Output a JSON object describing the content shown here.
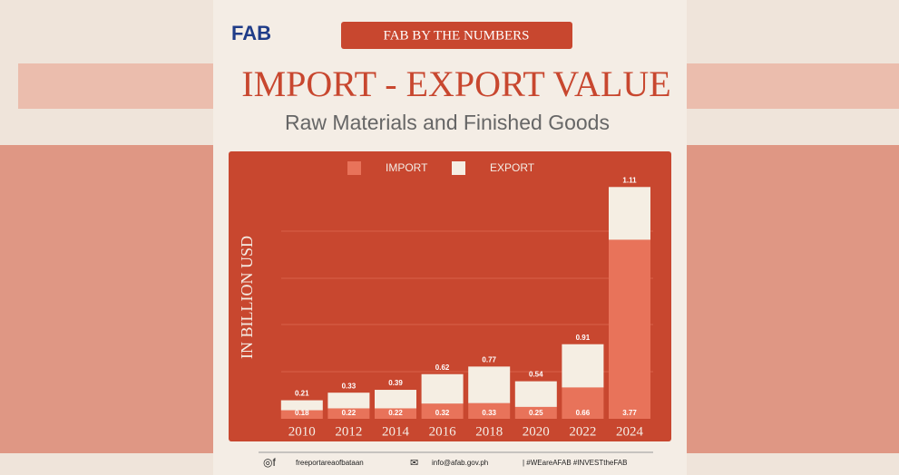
{
  "header": {
    "logo": "FAB",
    "banner": "FAB BY THE NUMBERS"
  },
  "chart_data": {
    "type": "stacked_bar",
    "title": "IMPORT - EXPORT VALUE",
    "subtitle": "Raw Materials and Finished Goods",
    "y_label": "IN BILLION USD",
    "categories": [
      "2010",
      "2012",
      "2014",
      "2016",
      "2018",
      "2020",
      "2022",
      "2024"
    ],
    "series": [
      {
        "name": "IMPORT",
        "color": "#e8735a",
        "values": [
          0.18,
          0.22,
          0.22,
          0.32,
          0.33,
          0.25,
          0.66,
          3.77
        ]
      },
      {
        "name": "EXPORT",
        "color": "#f5eee3",
        "values": [
          0.21,
          0.33,
          0.39,
          0.62,
          0.77,
          0.54,
          0.91,
          1.11
        ]
      }
    ],
    "ylim": [
      0,
      5
    ]
  },
  "footer": {
    "social": "freeportareaofbataan",
    "email": "info@afab.gov.ph",
    "tags": "| #WEareAFAB #INVESTtheFAB"
  }
}
